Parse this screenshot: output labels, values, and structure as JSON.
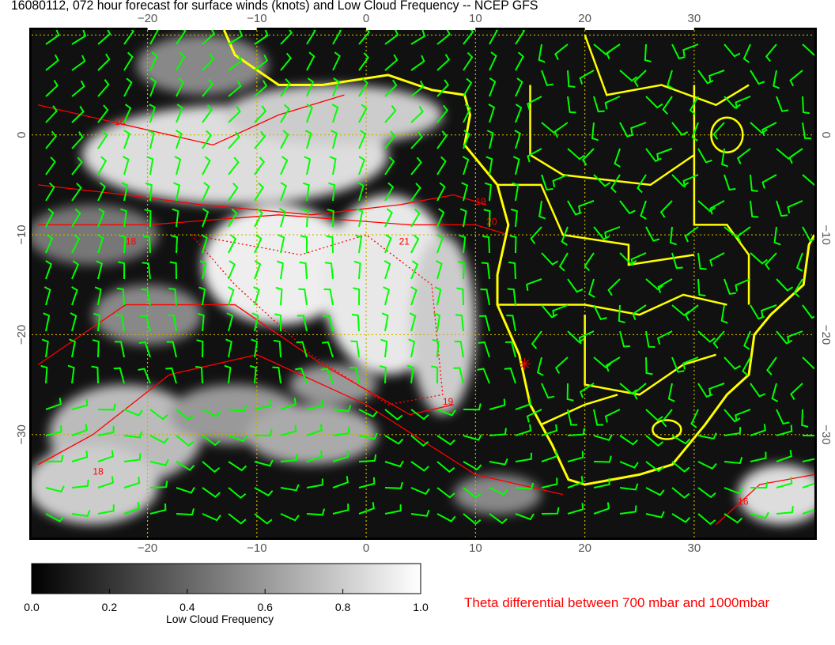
{
  "title": "16080112, 072 hour forecast for surface winds (knots) and Low Cloud Frequency -- NCEP GFS",
  "map": {
    "lon_range": [
      -30.6,
      41
    ],
    "lat_range": [
      -40.3,
      10.5
    ],
    "lon_ticks": [
      "−20",
      "−10",
      "0",
      "10",
      "20",
      "30"
    ],
    "lon_tick_values": [
      -20,
      -10,
      0,
      10,
      20,
      30
    ],
    "lat_ticks": [
      "0",
      "−10",
      "−20",
      "−30"
    ],
    "lat_tick_values": [
      0,
      -10,
      -20,
      -30
    ],
    "grid": true,
    "colors": {
      "coastline": "#ffff00",
      "wind_barbs": "#00ff00",
      "contours": "#ff0000",
      "grid": "#c8b400"
    },
    "contour_labels": [
      "16",
      "18",
      "19",
      "20",
      "21",
      "19",
      "18",
      "16"
    ],
    "marker": "red-x near 14E 23S"
  },
  "colorbar": {
    "label": "Low Cloud Frequency",
    "ticks": [
      "0.0",
      "0.2",
      "0.4",
      "0.6",
      "0.8",
      "1.0"
    ],
    "range": [
      0,
      1
    ],
    "colormap": "black-to-white"
  },
  "theta_label": "Theta differential between 700 mbar and 1000mbar"
}
